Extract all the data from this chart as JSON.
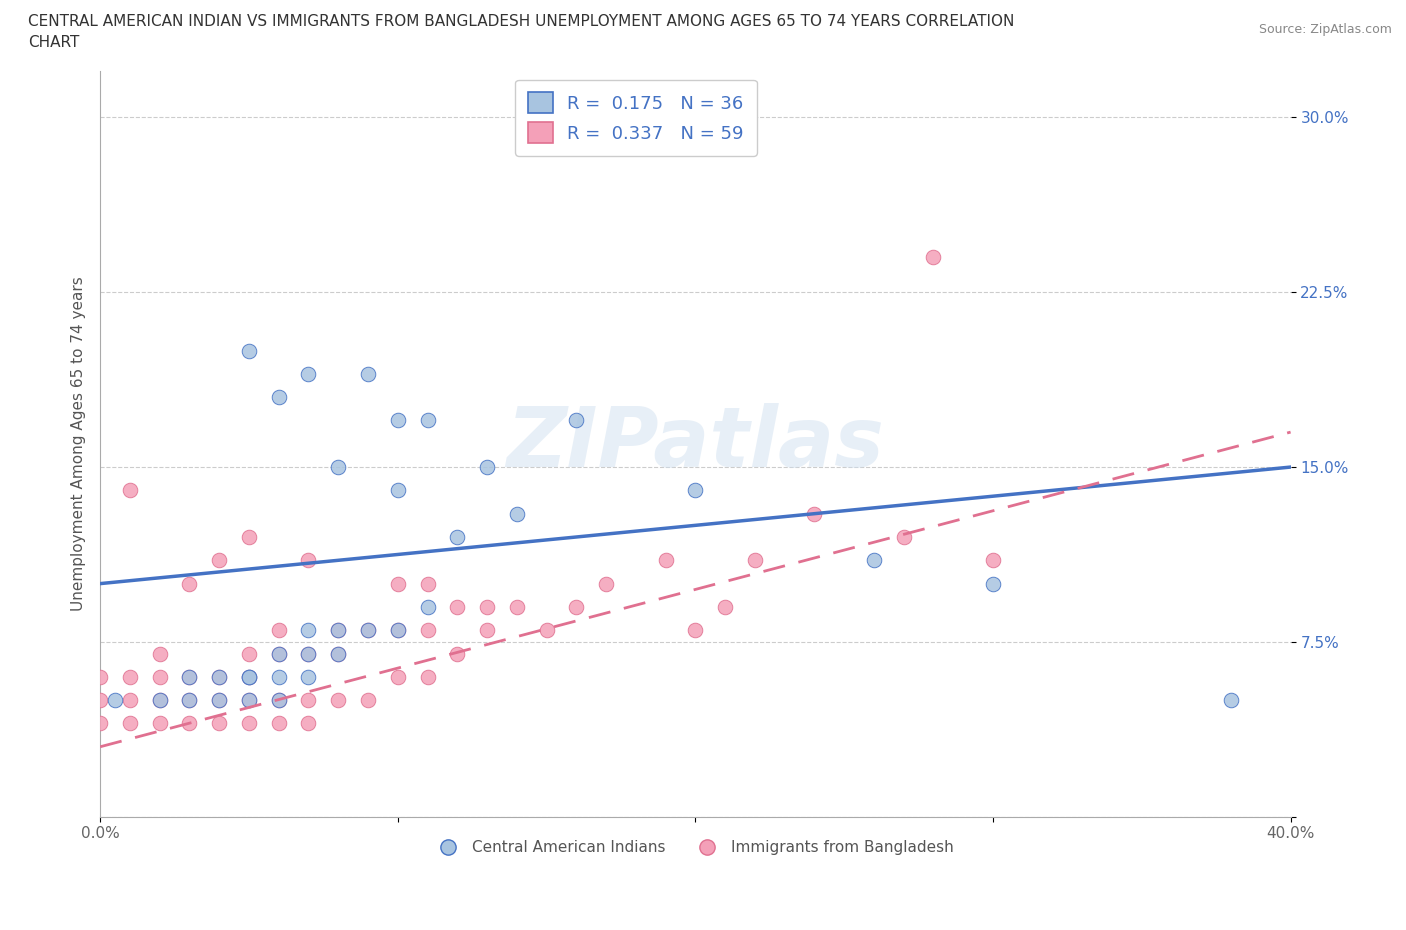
{
  "title_line1": "CENTRAL AMERICAN INDIAN VS IMMIGRANTS FROM BANGLADESH UNEMPLOYMENT AMONG AGES 65 TO 74 YEARS CORRELATION",
  "title_line2": "CHART",
  "source": "Source: ZipAtlas.com",
  "ylabel": "Unemployment Among Ages 65 to 74 years",
  "xlim": [
    0.0,
    0.4
  ],
  "ylim": [
    0.0,
    0.32
  ],
  "xticks": [
    0.0,
    0.1,
    0.2,
    0.3,
    0.4
  ],
  "xticklabels": [
    "0.0%",
    "",
    "",
    "",
    "40.0%"
  ],
  "yticks": [
    0.0,
    0.075,
    0.15,
    0.225,
    0.3
  ],
  "yticklabels": [
    "",
    "7.5%",
    "15.0%",
    "22.5%",
    "30.0%"
  ],
  "grid_color": "#cccccc",
  "background_color": "#ffffff",
  "watermark": "ZIPatlas",
  "legend_text1": "R =  0.175   N = 36",
  "legend_text2": "R =  0.337   N = 59",
  "color_blue": "#a8c4e0",
  "color_pink": "#f4a0b8",
  "line_blue": "#4472c4",
  "line_pink": "#e07090",
  "legend_label1": "Central American Indians",
  "legend_label2": "Immigrants from Bangladesh",
  "blue_x": [
    0.005,
    0.02,
    0.03,
    0.03,
    0.04,
    0.04,
    0.05,
    0.05,
    0.05,
    0.05,
    0.06,
    0.06,
    0.06,
    0.06,
    0.07,
    0.07,
    0.07,
    0.07,
    0.08,
    0.08,
    0.08,
    0.09,
    0.09,
    0.1,
    0.1,
    0.1,
    0.11,
    0.11,
    0.12,
    0.13,
    0.14,
    0.16,
    0.2,
    0.26,
    0.3,
    0.38
  ],
  "blue_y": [
    0.05,
    0.05,
    0.05,
    0.06,
    0.05,
    0.06,
    0.05,
    0.06,
    0.06,
    0.2,
    0.05,
    0.06,
    0.07,
    0.18,
    0.06,
    0.07,
    0.08,
    0.19,
    0.07,
    0.08,
    0.15,
    0.08,
    0.19,
    0.08,
    0.14,
    0.17,
    0.09,
    0.17,
    0.12,
    0.15,
    0.13,
    0.17,
    0.14,
    0.11,
    0.1,
    0.05
  ],
  "pink_x": [
    0.0,
    0.0,
    0.0,
    0.01,
    0.01,
    0.01,
    0.01,
    0.02,
    0.02,
    0.02,
    0.02,
    0.03,
    0.03,
    0.03,
    0.03,
    0.04,
    0.04,
    0.04,
    0.04,
    0.05,
    0.05,
    0.05,
    0.05,
    0.05,
    0.06,
    0.06,
    0.06,
    0.06,
    0.07,
    0.07,
    0.07,
    0.07,
    0.08,
    0.08,
    0.08,
    0.09,
    0.09,
    0.1,
    0.1,
    0.1,
    0.11,
    0.11,
    0.11,
    0.12,
    0.12,
    0.13,
    0.13,
    0.14,
    0.15,
    0.16,
    0.17,
    0.19,
    0.2,
    0.21,
    0.22,
    0.24,
    0.27,
    0.28,
    0.3
  ],
  "pink_y": [
    0.04,
    0.05,
    0.06,
    0.04,
    0.05,
    0.06,
    0.14,
    0.04,
    0.05,
    0.06,
    0.07,
    0.04,
    0.05,
    0.06,
    0.1,
    0.04,
    0.05,
    0.06,
    0.11,
    0.04,
    0.05,
    0.06,
    0.07,
    0.12,
    0.04,
    0.05,
    0.07,
    0.08,
    0.04,
    0.05,
    0.07,
    0.11,
    0.05,
    0.07,
    0.08,
    0.05,
    0.08,
    0.06,
    0.08,
    0.1,
    0.06,
    0.08,
    0.1,
    0.07,
    0.09,
    0.08,
    0.09,
    0.09,
    0.08,
    0.09,
    0.1,
    0.11,
    0.08,
    0.09,
    0.11,
    0.13,
    0.12,
    0.24,
    0.11
  ],
  "blue_line_x0": 0.0,
  "blue_line_y0": 0.1,
  "blue_line_x1": 0.4,
  "blue_line_y1": 0.15,
  "pink_line_x0": 0.0,
  "pink_line_y0": 0.03,
  "pink_line_x1": 0.4,
  "pink_line_y1": 0.165
}
